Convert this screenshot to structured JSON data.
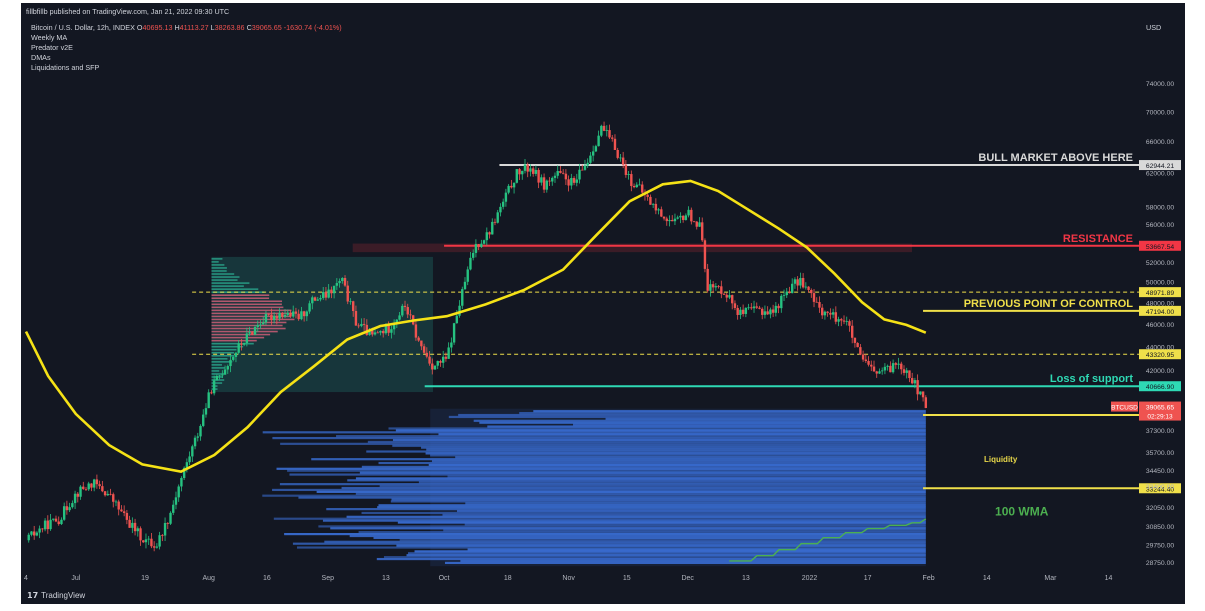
{
  "header": {
    "published": "fillbfillb published on TradingView.com, Jan 21, 2022 09:30 UTC",
    "symbol_line": "Bitcoin / U.S. Dollar, 12h, INDEX",
    "ohlc": {
      "o_label": "O",
      "o": "40695.13",
      "h_label": "H",
      "h": "41113.27",
      "l_label": "L",
      "l": "38263.86",
      "c_label": "C",
      "c": "39065.65",
      "change": "-1630.74 (-4.01%)"
    },
    "indicators": [
      "Weekly MA",
      "Predator v2E",
      "DMAs",
      "Liquidations and SFP"
    ],
    "currency": "USD"
  },
  "footer": {
    "brand": "TradingView"
  },
  "colors": {
    "background": "#131722",
    "up_candle": "#26c281",
    "down_candle": "#ef5350",
    "ma_line": "#f5e216",
    "bull_line": "#d9d9d9",
    "resistance": "#f23645",
    "poc": "#f0e04a",
    "support": "#2ed9b4",
    "liquidity": "#3a6fd6",
    "wma": "#4caf50"
  },
  "chart_data": {
    "type": "candlestick",
    "title": "",
    "x_ticks": [
      "4",
      "Jul",
      "19",
      "Aug",
      "16",
      "Sep",
      "13",
      "Oct",
      "18",
      "Nov",
      "15",
      "Dec",
      "13",
      "2022",
      "17",
      "Feb",
      "14",
      "Mar",
      "14"
    ],
    "x_ticks_time": [
      0,
      0.9,
      2.15,
      3.3,
      4.35,
      5.45,
      6.5,
      7.55,
      8.7,
      9.8,
      10.85,
      11.95,
      13.0,
      14.15,
      15.2,
      16.3,
      17.35,
      18.5,
      19.55
    ],
    "y_price_labels": [
      "74000.00",
      "70000.00",
      "66000.00",
      "62000.00",
      "58000.00",
      "56000.00",
      "52000.00",
      "50000.00",
      "48000.00",
      "46000.00",
      "44000.00",
      "42000.00",
      "37300.00",
      "35700.00",
      "34450.00",
      "33400.00",
      "32050.00",
      "30850.00",
      "29750.00",
      "28750.00"
    ],
    "y_price_values": [
      74000,
      70000,
      66000,
      62000,
      58000,
      56000,
      52000,
      50000,
      48000,
      46000,
      44000,
      42000,
      37300,
      35700,
      34450,
      33400,
      32050,
      30850,
      29750,
      28750
    ],
    "levels": [
      {
        "label": "BULL MARKET ABOVE HERE",
        "price_tag": "62944.21",
        "value": 62944.21,
        "color": "#d9d9d9",
        "style": "solid"
      },
      {
        "label": "RESISTANCE",
        "price_tag": "53667.54",
        "value": 53667.54,
        "color": "#f23645",
        "style": "solid"
      },
      {
        "label": "",
        "price_tag": "48971.89",
        "value": 48971.89,
        "color": "#f0e04a",
        "style": "dashed"
      },
      {
        "label": "PREVIOUS POINT OF CONTROL",
        "price_tag": "47194.00",
        "value": 47194.0,
        "color": "#f0e04a",
        "style": "solid"
      },
      {
        "label": "",
        "price_tag": "43320.95",
        "value": 43320.95,
        "color": "#f0e04a",
        "style": "dashed"
      },
      {
        "label": "Loss of support",
        "price_tag": "40666.90",
        "value": 40666.9,
        "color": "#2ed9b4",
        "style": "solid"
      },
      {
        "label": "",
        "price_tag": "38416.36",
        "value": 38416.36,
        "color": "#f0e04a",
        "style": "solid"
      },
      {
        "label": "",
        "price_tag": "33244.40",
        "value": 33244.4,
        "color": "#f0e04a",
        "style": "solid"
      }
    ],
    "current_price": {
      "symbol": "BTCUSD",
      "price": "39065.65",
      "countdown": "02:29:13",
      "value": 39065.65
    },
    "annotations": [
      {
        "text": "Liquidity",
        "price": 35000,
        "time": 17.3
      },
      {
        "text": "100 WMA",
        "price": 31500,
        "time": 17.5
      }
    ],
    "price_path": [
      [
        0,
        30000
      ],
      [
        0.35,
        30900
      ],
      [
        0.6,
        31300
      ],
      [
        0.9,
        32900
      ],
      [
        1.2,
        33600
      ],
      [
        1.5,
        32800
      ],
      [
        1.8,
        31300
      ],
      [
        2.1,
        30100
      ],
      [
        2.35,
        29650
      ],
      [
        2.6,
        31600
      ],
      [
        2.85,
        34400
      ],
      [
        3.1,
        37000
      ],
      [
        3.35,
        40500
      ],
      [
        3.6,
        42300
      ],
      [
        3.9,
        44300
      ],
      [
        4.25,
        46300
      ],
      [
        4.6,
        47000
      ],
      [
        4.95,
        46600
      ],
      [
        5.2,
        48300
      ],
      [
        5.45,
        48700
      ],
      [
        5.7,
        50200
      ],
      [
        5.95,
        46200
      ],
      [
        6.25,
        44900
      ],
      [
        6.55,
        45600
      ],
      [
        6.85,
        47700
      ],
      [
        7.1,
        44200
      ],
      [
        7.35,
        42300
      ],
      [
        7.6,
        42900
      ],
      [
        7.85,
        48300
      ],
      [
        8.1,
        53600
      ],
      [
        8.35,
        55000
      ],
      [
        8.6,
        58200
      ],
      [
        8.85,
        61800
      ],
      [
        9.1,
        62700
      ],
      [
        9.35,
        60500
      ],
      [
        9.6,
        61800
      ],
      [
        9.9,
        60600
      ],
      [
        10.15,
        63600
      ],
      [
        10.4,
        67800
      ],
      [
        10.65,
        65000
      ],
      [
        10.9,
        61200
      ],
      [
        11.15,
        59500
      ],
      [
        11.4,
        57500
      ],
      [
        11.7,
        56000
      ],
      [
        11.95,
        57300
      ],
      [
        12.2,
        55400
      ],
      [
        12.3,
        49500
      ],
      [
        12.6,
        49200
      ],
      [
        12.9,
        46900
      ],
      [
        13.2,
        47300
      ],
      [
        13.5,
        47100
      ],
      [
        13.75,
        49200
      ],
      [
        14.0,
        50200
      ],
      [
        14.3,
        47500
      ],
      [
        14.55,
        46700
      ],
      [
        14.8,
        46400
      ],
      [
        15.05,
        43100
      ],
      [
        15.3,
        41800
      ],
      [
        15.55,
        41900
      ],
      [
        15.75,
        42700
      ],
      [
        15.95,
        41700
      ],
      [
        16.15,
        39900
      ],
      [
        16.25,
        39065
      ]
    ],
    "moving_average": [
      [
        0,
        45300
      ],
      [
        0.4,
        41500
      ],
      [
        0.9,
        38500
      ],
      [
        1.5,
        36200
      ],
      [
        2.1,
        34850
      ],
      [
        2.8,
        34350
      ],
      [
        3.4,
        35500
      ],
      [
        4.0,
        37500
      ],
      [
        4.6,
        40200
      ],
      [
        5.2,
        42300
      ],
      [
        5.8,
        44600
      ],
      [
        6.4,
        45800
      ],
      [
        7.0,
        46300
      ],
      [
        7.6,
        46700
      ],
      [
        8.3,
        47800
      ],
      [
        9.0,
        49200
      ],
      [
        9.7,
        51200
      ],
      [
        10.3,
        54800
      ],
      [
        10.9,
        58600
      ],
      [
        11.5,
        60600
      ],
      [
        12.0,
        61000
      ],
      [
        12.5,
        59800
      ],
      [
        13.0,
        57800
      ],
      [
        13.6,
        55500
      ],
      [
        14.1,
        53500
      ],
      [
        14.6,
        50800
      ],
      [
        15.1,
        48000
      ],
      [
        15.5,
        46400
      ],
      [
        15.9,
        45900
      ],
      [
        16.25,
        45200
      ]
    ],
    "wma_steps": [
      [
        12.7,
        28800
      ],
      [
        13.2,
        29100
      ],
      [
        13.6,
        29450
      ],
      [
        14.0,
        29800
      ],
      [
        14.4,
        30150
      ],
      [
        14.8,
        30450
      ],
      [
        15.2,
        30700
      ],
      [
        15.6,
        30900
      ],
      [
        16.0,
        31050
      ],
      [
        16.25,
        31300
      ]
    ],
    "x_range": [
      0,
      20.1
    ],
    "y_range": [
      28400,
      77000
    ],
    "log_scale": true,
    "grid": false
  }
}
